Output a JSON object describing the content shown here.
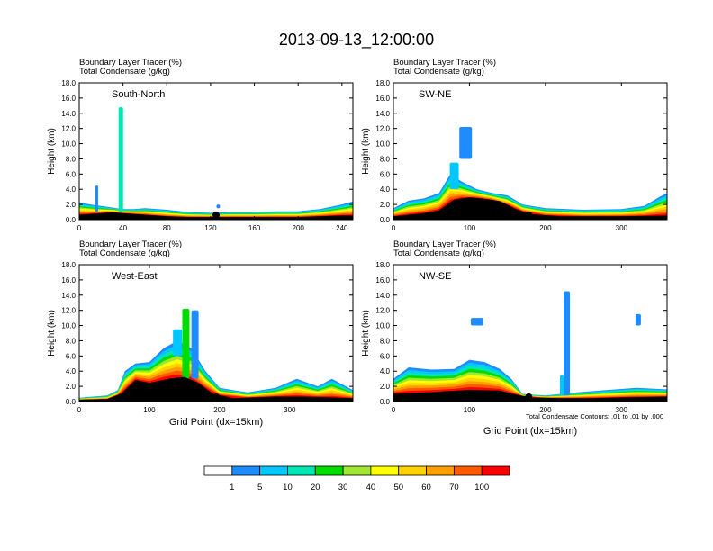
{
  "title": "2013-09-13_12:00:00",
  "header_lines": [
    "Boundary Layer Tracer   (%)",
    "Total Condensate   (g/kg)"
  ],
  "ylabel": "Height (km)",
  "xlabel": "Grid Point (dx=15km)",
  "contour_note": "Total Condensate Contours: .01 to .01 by .000",
  "colorbar": {
    "levels": [
      "1",
      "5",
      "10",
      "20",
      "30",
      "40",
      "50",
      "60",
      "70",
      "100"
    ],
    "colors": [
      "#ffffff",
      "#1e8cff",
      "#00c8ff",
      "#00e6b4",
      "#00dc00",
      "#a0e632",
      "#ffff00",
      "#ffd200",
      "#ffa000",
      "#ff5a00",
      "#ff0000"
    ]
  },
  "panels": [
    {
      "name": "South-North",
      "xlim": [
        0,
        250
      ],
      "ylim": [
        0,
        18
      ],
      "xticks": [
        "0",
        "40",
        "80",
        "120",
        "160",
        "200",
        "240"
      ],
      "yticks": [
        "0.0",
        "2.0",
        "4.0",
        "6.0",
        "8.0",
        "10.0",
        "12.0",
        "14.0",
        "16.0",
        "18.0"
      ],
      "show_xlabel": false,
      "show_note": false,
      "marker_x": 125,
      "tracer_top": [
        [
          0,
          2.3
        ],
        [
          10,
          2.0
        ],
        [
          20,
          1.8
        ],
        [
          30,
          1.6
        ],
        [
          40,
          1.4
        ],
        [
          50,
          1.4
        ],
        [
          60,
          1.5
        ],
        [
          80,
          1.3
        ],
        [
          100,
          1.0
        ],
        [
          120,
          0.9
        ],
        [
          140,
          1.0
        ],
        [
          160,
          1.0
        ],
        [
          180,
          1.1
        ],
        [
          200,
          1.1
        ],
        [
          220,
          1.4
        ],
        [
          240,
          2.0
        ],
        [
          250,
          2.4
        ]
      ],
      "terrain": [
        [
          0,
          0.6
        ],
        [
          10,
          0.7
        ],
        [
          20,
          0.8
        ],
        [
          30,
          0.9
        ],
        [
          40,
          0.8
        ],
        [
          50,
          0.7
        ],
        [
          60,
          0.6
        ],
        [
          80,
          0.4
        ],
        [
          100,
          0.3
        ],
        [
          120,
          0.3
        ],
        [
          140,
          0.3
        ],
        [
          160,
          0.3
        ],
        [
          180,
          0.3
        ],
        [
          200,
          0.3
        ],
        [
          220,
          0.4
        ],
        [
          240,
          0.5
        ],
        [
          250,
          0.5
        ]
      ],
      "blobs": [
        {
          "x": 38,
          "y0": 1.0,
          "y1": 14.8,
          "w": 5,
          "fill": "#00e6b4"
        },
        {
          "x": 16,
          "y0": 1.0,
          "y1": 4.5,
          "w": 3,
          "fill": "#1e8cff"
        },
        {
          "x": 127,
          "y0": 1.5,
          "y1": 2.0,
          "w": 4,
          "fill": "#1e8cff"
        }
      ]
    },
    {
      "name": "SW-NE",
      "xlim": [
        0,
        360
      ],
      "ylim": [
        0,
        18
      ],
      "xticks": [
        "0",
        "100",
        "200",
        "300"
      ],
      "yticks": [
        "0.0",
        "2.0",
        "4.0",
        "6.0",
        "8.0",
        "10.0",
        "12.0",
        "14.0",
        "16.0",
        "18.0"
      ],
      "show_xlabel": false,
      "show_note": false,
      "marker_x": 178,
      "tracer_top": [
        [
          0,
          1.5
        ],
        [
          20,
          2.5
        ],
        [
          40,
          2.8
        ],
        [
          60,
          3.5
        ],
        [
          75,
          6.0
        ],
        [
          90,
          5.0
        ],
        [
          110,
          4.0
        ],
        [
          130,
          3.5
        ],
        [
          150,
          3.2
        ],
        [
          170,
          2.0
        ],
        [
          200,
          1.5
        ],
        [
          250,
          1.3
        ],
        [
          300,
          1.4
        ],
        [
          330,
          1.8
        ],
        [
          350,
          3.0
        ],
        [
          360,
          3.5
        ]
      ],
      "terrain": [
        [
          0,
          0.4
        ],
        [
          40,
          0.8
        ],
        [
          60,
          1.2
        ],
        [
          80,
          2.6
        ],
        [
          100,
          2.9
        ],
        [
          120,
          2.7
        ],
        [
          140,
          2.4
        ],
        [
          160,
          1.4
        ],
        [
          180,
          0.7
        ],
        [
          220,
          0.4
        ],
        [
          300,
          0.4
        ],
        [
          360,
          0.5
        ]
      ],
      "blobs": [
        {
          "x": 95,
          "y0": 8.0,
          "y1": 12.2,
          "w": 14,
          "fill": "#1e8cff"
        },
        {
          "x": 80,
          "y0": 4.0,
          "y1": 7.5,
          "w": 10,
          "fill": "#00c8ff"
        }
      ]
    },
    {
      "name": "West-East",
      "xlim": [
        0,
        390
      ],
      "ylim": [
        0,
        18
      ],
      "xticks": [
        "0",
        "100",
        "200",
        "300"
      ],
      "yticks": [
        "0.0",
        "2.0",
        "4.0",
        "6.0",
        "8.0",
        "10.0",
        "12.0",
        "14.0",
        "16.0",
        "18.0"
      ],
      "show_xlabel": true,
      "show_note": false,
      "marker_x": 195,
      "tracer_top": [
        [
          0,
          0.5
        ],
        [
          40,
          0.8
        ],
        [
          55,
          1.5
        ],
        [
          65,
          4.0
        ],
        [
          80,
          5.0
        ],
        [
          100,
          5.2
        ],
        [
          120,
          7.0
        ],
        [
          140,
          8.0
        ],
        [
          160,
          7.0
        ],
        [
          180,
          4.0
        ],
        [
          200,
          1.8
        ],
        [
          240,
          1.2
        ],
        [
          280,
          1.8
        ],
        [
          310,
          3.0
        ],
        [
          340,
          2.0
        ],
        [
          360,
          3.0
        ],
        [
          390,
          1.5
        ]
      ],
      "terrain": [
        [
          0,
          0.2
        ],
        [
          40,
          0.3
        ],
        [
          60,
          1.0
        ],
        [
          80,
          2.8
        ],
        [
          100,
          2.4
        ],
        [
          130,
          3.0
        ],
        [
          150,
          3.2
        ],
        [
          170,
          2.4
        ],
        [
          190,
          1.0
        ],
        [
          220,
          0.4
        ],
        [
          280,
          0.6
        ],
        [
          320,
          0.6
        ],
        [
          360,
          0.5
        ],
        [
          390,
          0.4
        ]
      ],
      "blobs": [
        {
          "x": 152,
          "y0": 3.0,
          "y1": 12.2,
          "w": 8,
          "fill": "#00dc00"
        },
        {
          "x": 165,
          "y0": 3.0,
          "y1": 12.0,
          "w": 8,
          "fill": "#1e8cff"
        },
        {
          "x": 140,
          "y0": 6.0,
          "y1": 9.5,
          "w": 10,
          "fill": "#00c8ff"
        }
      ]
    },
    {
      "name": "NW-SE",
      "xlim": [
        0,
        360
      ],
      "ylim": [
        0,
        18
      ],
      "xticks": [
        "0",
        "100",
        "200",
        "300"
      ],
      "yticks": [
        "0.0",
        "2.0",
        "4.0",
        "6.0",
        "8.0",
        "10.0",
        "12.0",
        "14.0",
        "16.0",
        "18.0"
      ],
      "show_xlabel": true,
      "show_note": true,
      "marker_x": 178,
      "tracer_top": [
        [
          0,
          3.0
        ],
        [
          20,
          4.5
        ],
        [
          50,
          4.2
        ],
        [
          80,
          4.3
        ],
        [
          100,
          5.5
        ],
        [
          120,
          5.2
        ],
        [
          140,
          4.3
        ],
        [
          155,
          3.0
        ],
        [
          170,
          1.0
        ],
        [
          200,
          0.8
        ],
        [
          240,
          1.2
        ],
        [
          280,
          1.5
        ],
        [
          320,
          1.8
        ],
        [
          360,
          1.6
        ]
      ],
      "terrain": [
        [
          0,
          1.0
        ],
        [
          50,
          1.2
        ],
        [
          100,
          1.5
        ],
        [
          140,
          1.4
        ],
        [
          160,
          0.9
        ],
        [
          180,
          0.5
        ],
        [
          220,
          0.4
        ],
        [
          260,
          0.4
        ],
        [
          300,
          0.5
        ],
        [
          360,
          0.6
        ]
      ],
      "blobs": [
        {
          "x": 228,
          "y0": 0.8,
          "y1": 14.5,
          "w": 7,
          "fill": "#1e8cff"
        },
        {
          "x": 222,
          "y0": 0.8,
          "y1": 3.5,
          "w": 5,
          "fill": "#00c8ff"
        },
        {
          "x": 110,
          "y0": 10.0,
          "y1": 11.0,
          "w": 14,
          "fill": "#1e8cff"
        },
        {
          "x": 322,
          "y0": 10.0,
          "y1": 11.5,
          "w": 6,
          "fill": "#1e8cff"
        }
      ]
    }
  ]
}
